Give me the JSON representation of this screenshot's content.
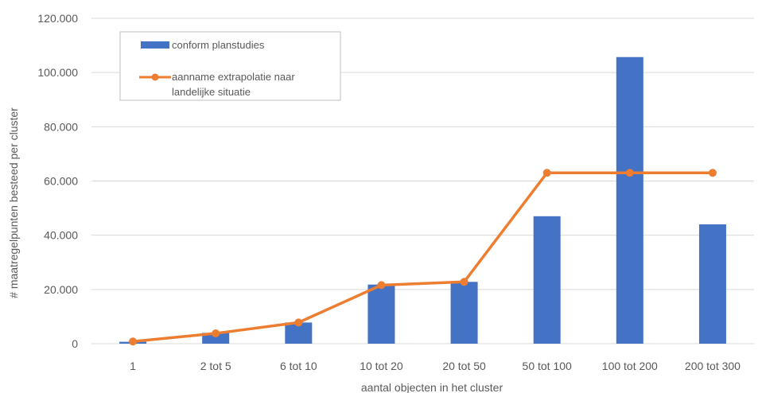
{
  "chart_data": {
    "type": "bar",
    "categories": [
      "1",
      "2 tot 5",
      "6 tot 10",
      "10 tot 20",
      "20 tot 50",
      "50 tot 100",
      "100 tot 200",
      "200 tot 300"
    ],
    "series": [
      {
        "name": "conform planstudies",
        "type": "bar",
        "color": "#4472c4",
        "values": [
          700,
          4000,
          7800,
          21800,
          22800,
          47000,
          105700,
          44000
        ]
      },
      {
        "name": "aanname extrapolatie naar landelijke situatie",
        "name_lines": [
          "aanname extrapolatie naar",
          "landelijke situatie"
        ],
        "type": "line",
        "color": "#ed7d31",
        "values": [
          800,
          3800,
          7800,
          21600,
          22800,
          63000,
          63000,
          63000
        ]
      }
    ],
    "yticks": [
      "0",
      "20.000",
      "40.000",
      "60.000",
      "80.000",
      "100.000",
      "120.000"
    ],
    "ylim": [
      0,
      120000
    ],
    "xlabel": "aantal objecten in het cluster",
    "ylabel": "# maatregelpunten besteed per cluster",
    "grid": true,
    "legend": "top-left"
  }
}
